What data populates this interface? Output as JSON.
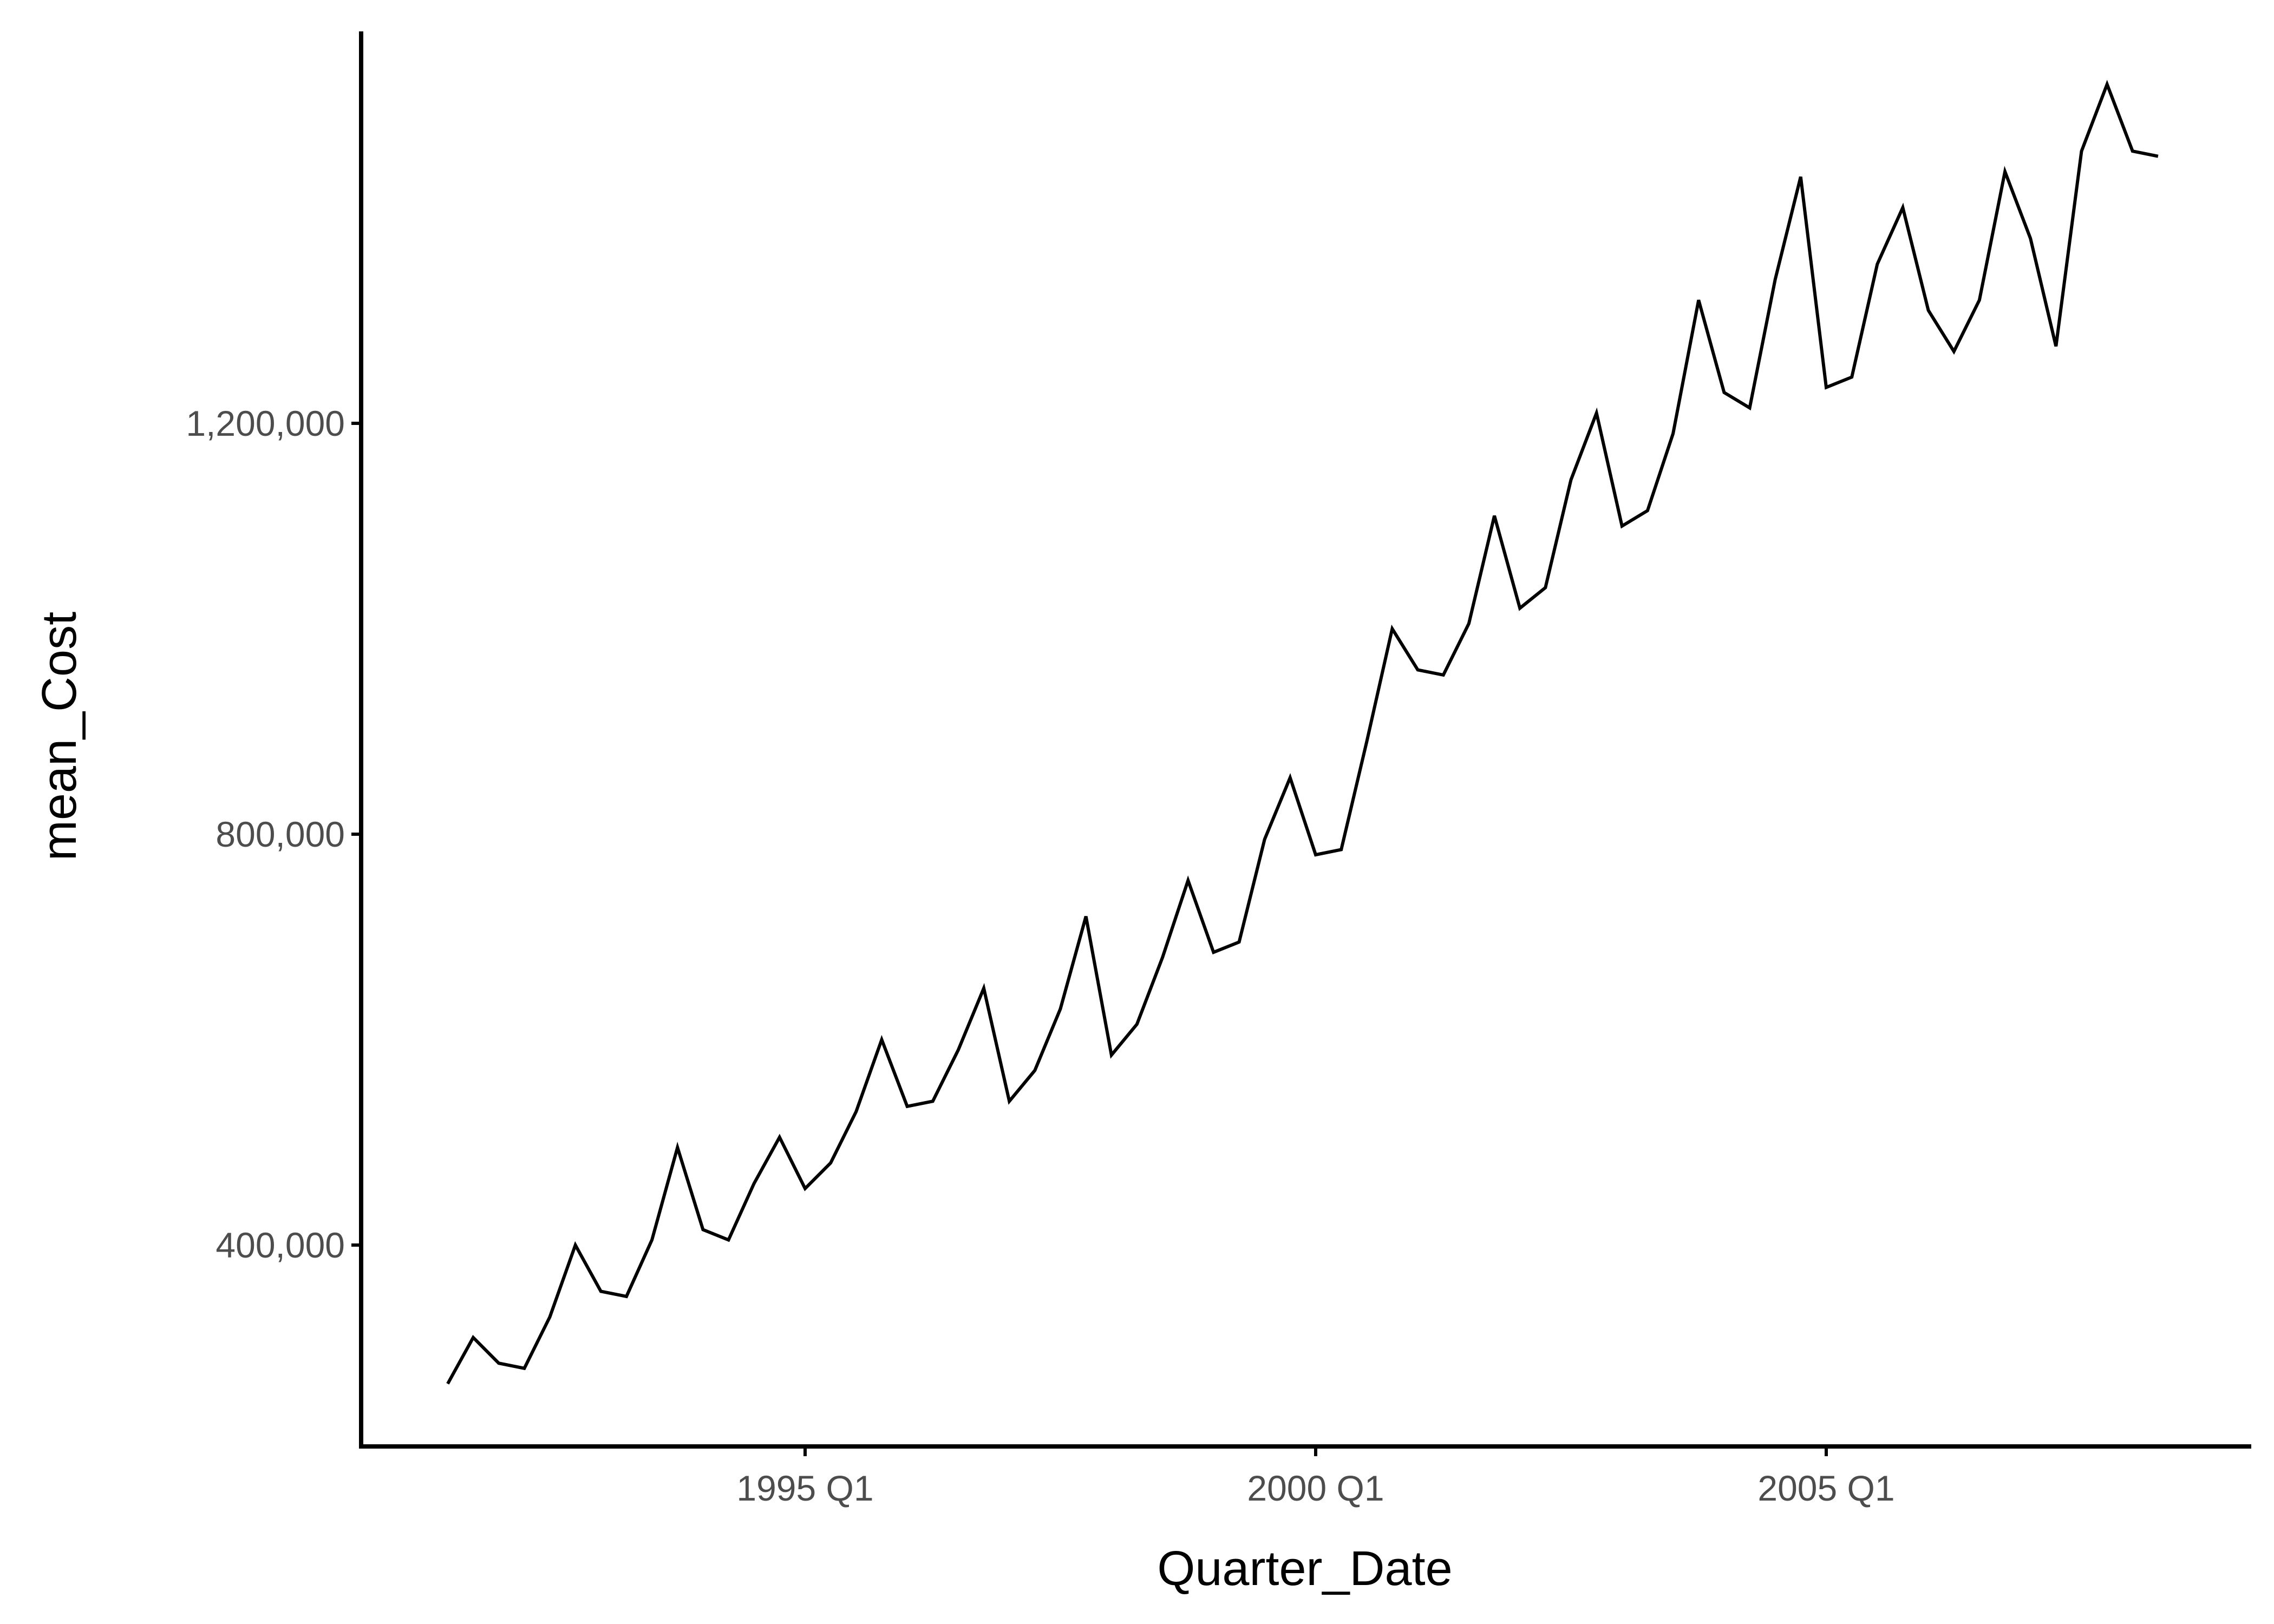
{
  "chart_data": {
    "type": "line",
    "title": "",
    "xlabel": "Quarter_Date",
    "ylabel": "mean_Cost",
    "x_ticks": [
      "1995 Q1",
      "2000 Q1",
      "2005 Q1"
    ],
    "y_ticks": [
      "400,000",
      "800,000",
      "1,200,000"
    ],
    "ylim": [
      190000,
      1570000
    ],
    "grid": false,
    "legend": "none",
    "line_color": "#000000",
    "series": [
      {
        "x": [
          "1991 Q3",
          "1991 Q4",
          "1992 Q1",
          "1992 Q2",
          "1992 Q3",
          "1992 Q4",
          "1993 Q1",
          "1993 Q2",
          "1993 Q3",
          "1993 Q4",
          "1994 Q1",
          "1994 Q2",
          "1994 Q3",
          "1994 Q4",
          "1995 Q1",
          "1995 Q2",
          "1995 Q3",
          "1995 Q4",
          "1996 Q1",
          "1996 Q2",
          "1996 Q3",
          "1996 Q4",
          "1997 Q1",
          "1997 Q2",
          "1997 Q3",
          "1997 Q4",
          "1998 Q1",
          "1998 Q2",
          "1998 Q3",
          "1998 Q4",
          "1999 Q1",
          "1999 Q2",
          "1999 Q3",
          "1999 Q4",
          "2000 Q1",
          "2000 Q2",
          "2000 Q3",
          "2000 Q4",
          "2001 Q1",
          "2001 Q2",
          "2001 Q3",
          "2001 Q4",
          "2002 Q1",
          "2002 Q2",
          "2002 Q3",
          "2002 Q4",
          "2003 Q1",
          "2003 Q2",
          "2003 Q3",
          "2003 Q4",
          "2004 Q1",
          "2004 Q2",
          "2004 Q3",
          "2004 Q4",
          "2005 Q1",
          "2005 Q2",
          "2005 Q3",
          "2005 Q4",
          "2006 Q1",
          "2006 Q2",
          "2006 Q3",
          "2006 Q4",
          "2007 Q1",
          "2007 Q2",
          "2007 Q3",
          "2007 Q4",
          "2008 Q1",
          "2008 Q2"
        ],
        "values": [
          265000,
          310000,
          285000,
          280000,
          330000,
          400000,
          355000,
          350000,
          405000,
          495000,
          415000,
          405000,
          460000,
          505000,
          455000,
          480000,
          530000,
          600000,
          535000,
          540000,
          590000,
          650000,
          540000,
          570000,
          630000,
          720000,
          585000,
          615000,
          680000,
          755000,
          685000,
          695000,
          795000,
          855000,
          780000,
          785000,
          890000,
          1000000,
          960000,
          955000,
          1005000,
          1110000,
          1020000,
          1040000,
          1145000,
          1210000,
          1100000,
          1115000,
          1190000,
          1320000,
          1230000,
          1215000,
          1340000,
          1440000,
          1235000,
          1245000,
          1355000,
          1410000,
          1310000,
          1270000,
          1320000,
          1445000,
          1380000,
          1275000,
          1465000,
          1530000,
          1465000,
          1460000
        ]
      }
    ]
  }
}
